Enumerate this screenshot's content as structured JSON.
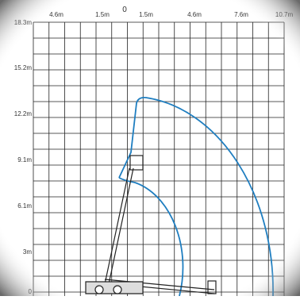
{
  "x_axis": {
    "labels": [
      "4.6m",
      "1.5m",
      "0",
      "1.5m",
      "4.6m",
      "7.6m",
      "10.7m"
    ]
  },
  "y_axis": {
    "labels": [
      "18.3m",
      "15.2m",
      "12.2m",
      "9.1m",
      "6.1m",
      "3m",
      "0"
    ]
  }
}
